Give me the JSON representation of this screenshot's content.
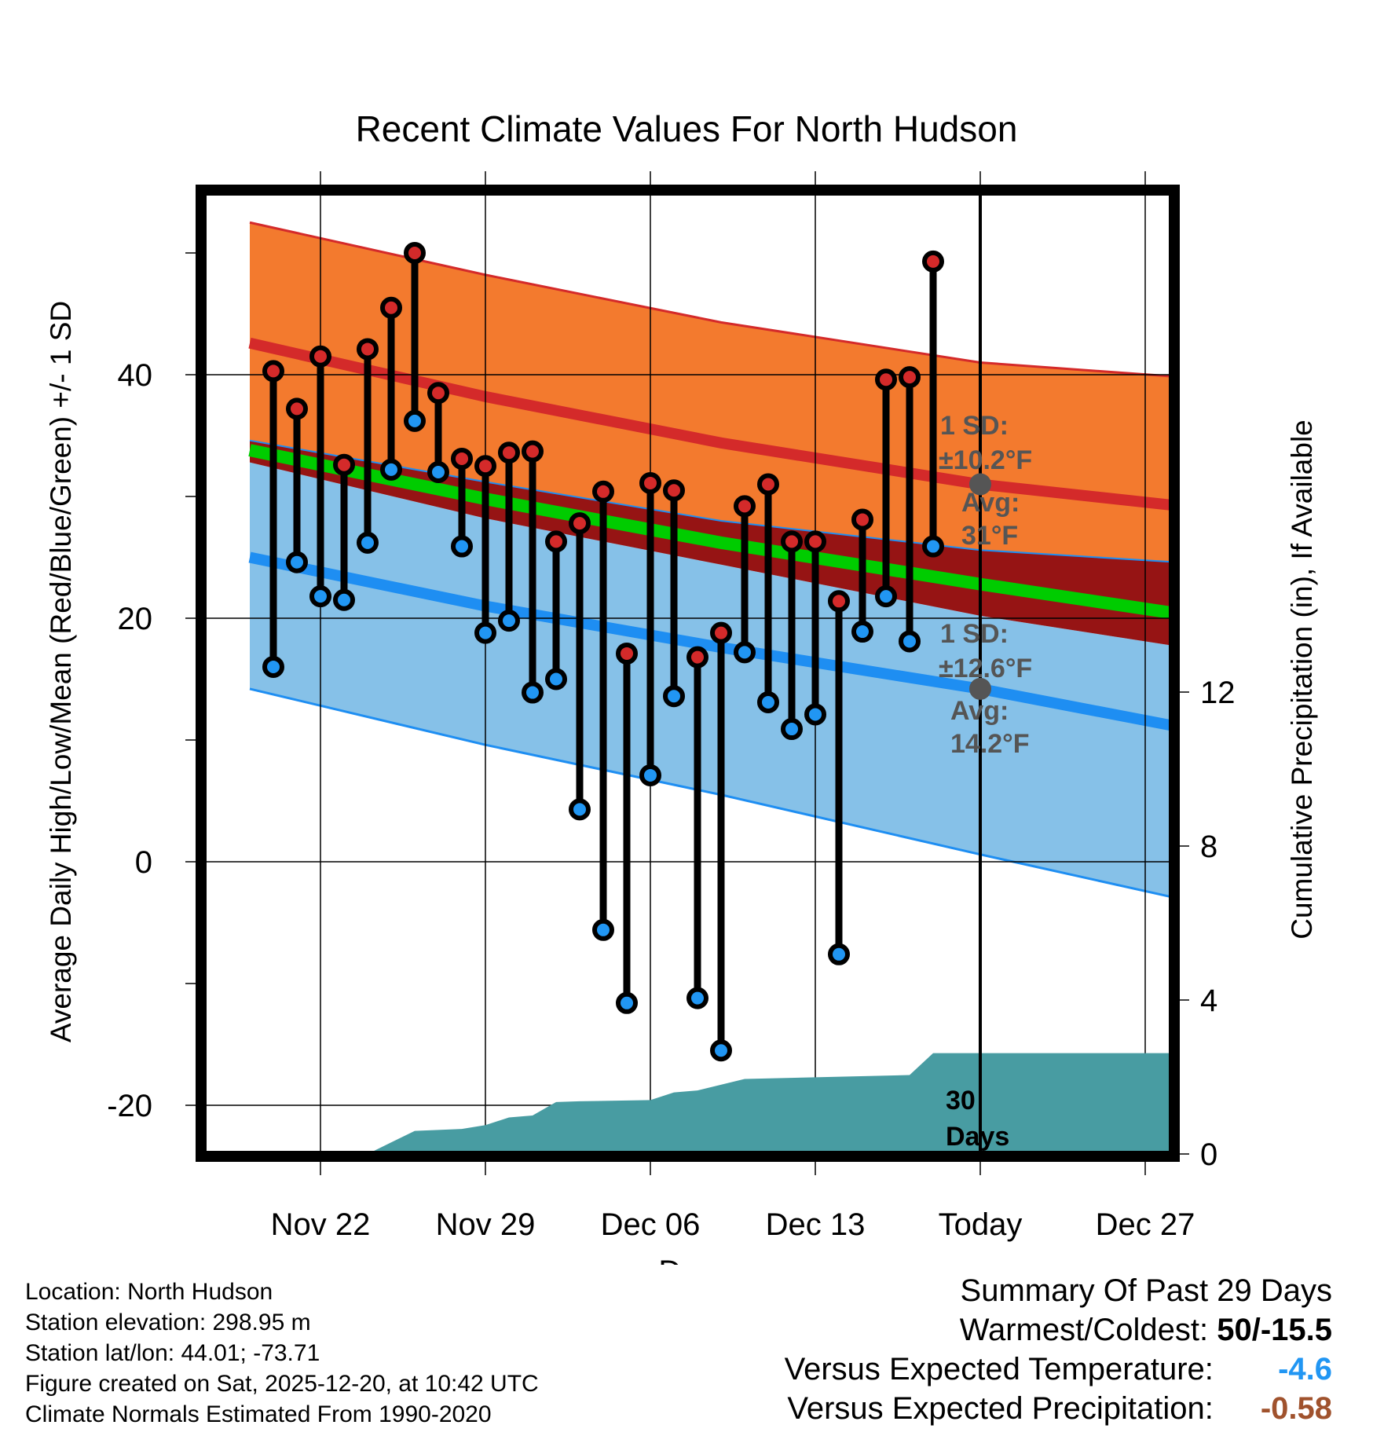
{
  "chart_data": {
    "type": "climate-range",
    "title": "Recent Climate Values For North Hudson",
    "xlabel": "Day",
    "ylabel_left": "Average Daily High/Low/Mean (Red/Blue/Green) +/- 1 SD",
    "ylabel_right": "Cumulative Precipitation (in), If Available",
    "y_left_range": [
      -23,
      55
    ],
    "y_right_range": [
      0,
      30
    ],
    "x_range": [
      -1,
      13.5
    ],
    "x_ticks": [
      {
        "day": 2,
        "label": "Nov 22"
      },
      {
        "day": 9,
        "label": "Nov 29"
      },
      {
        "day": 16,
        "label": "Dec 06"
      },
      {
        "day": 23,
        "label": "Dec 13"
      },
      {
        "day": 30,
        "label": "Today"
      },
      {
        "day": 37,
        "label": "Dec 27"
      }
    ],
    "y_left_ticks": [
      -20,
      0,
      20,
      40
    ],
    "y_right_ticks": [
      0,
      4,
      8,
      12
    ],
    "normals": {
      "days": [
        -1,
        9,
        19,
        30,
        40
      ],
      "high_plus_sd": [
        52.5,
        48.2,
        44.3,
        41.0,
        39.6
      ],
      "high_avg": [
        42.6,
        38.2,
        34.4,
        31.0,
        28.9
      ],
      "high_minus_sd": [
        34.6,
        31.2,
        28.0,
        25.6,
        24.4
      ],
      "mean": [
        33.8,
        29.8,
        26.2,
        22.8,
        19.9
      ],
      "low_plus_sd": [
        32.8,
        28.2,
        24.4,
        20.2,
        17.2
      ],
      "low_avg": [
        25.0,
        21.0,
        17.6,
        14.2,
        10.5
      ],
      "low_minus_sd": [
        14.2,
        9.6,
        5.5,
        0.6,
        -3.7
      ]
    },
    "observations": {
      "days": [
        0,
        1,
        2,
        3,
        4,
        5,
        6,
        7,
        8,
        9,
        10,
        11,
        12,
        13,
        14,
        15,
        16,
        17,
        18,
        19,
        20,
        21,
        22,
        23,
        24,
        25,
        26,
        27,
        28
      ],
      "highs": [
        40.3,
        37.2,
        41.5,
        32.6,
        42.1,
        45.5,
        50.0,
        38.5,
        33.1,
        32.5,
        33.6,
        33.7,
        26.3,
        27.8,
        30.4,
        17.1,
        31.1,
        30.5,
        16.8,
        18.8,
        29.2,
        31.0,
        26.3,
        26.3,
        21.4,
        28.1,
        39.6,
        39.8,
        49.3
      ],
      "lows": [
        16.0,
        24.6,
        21.8,
        21.5,
        26.2,
        32.2,
        36.2,
        32.0,
        25.9,
        18.8,
        19.8,
        13.9,
        15.0,
        4.3,
        -5.6,
        -11.6,
        7.1,
        13.6,
        -11.2,
        -15.5,
        17.2,
        13.1,
        10.9,
        12.1,
        -7.6,
        18.9,
        21.8,
        18.1,
        25.9
      ]
    },
    "precipitation": {
      "days": [
        -1,
        4,
        5,
        6,
        8,
        9,
        10,
        11,
        12,
        13,
        16,
        17,
        18,
        20,
        27,
        28,
        29,
        40
      ],
      "cumulative": [
        0,
        0,
        0.3,
        0.6,
        0.65,
        0.75,
        0.95,
        1.0,
        1.35,
        1.37,
        1.4,
        1.6,
        1.65,
        1.95,
        2.05,
        2.62,
        2.62,
        2.62
      ]
    },
    "annotations": {
      "high_sd_line1": "1 SD:",
      "high_sd_line2": "±10.2°F",
      "high_avg_label": "Avg:",
      "high_avg_value": "31°F",
      "high_avg_today": 31.0,
      "low_sd_line1": "1 SD:",
      "low_sd_line2": "±12.6°F",
      "low_avg_label": "Avg:",
      "low_avg_value": "14.2°F",
      "low_avg_today": 14.2,
      "days_line1": "30",
      "days_line2": "Days"
    },
    "colors": {
      "high_band": "#f37a2e",
      "high_line": "#d42a2a",
      "mean_band": "#961414",
      "mean_line": "#00cc00",
      "low_band": "#86c1e8",
      "low_line": "#1e8ef2",
      "precip": "#489ca2",
      "high_dot": "#d42a2a",
      "low_dot": "#2196f3",
      "avg_dot": "#555555",
      "annotation_text": "#555555"
    }
  },
  "footer": {
    "location": "Location: North Hudson",
    "elevation": "Station elevation: 298.95 m",
    "latlon": "Station lat/lon: 44.01; -73.71",
    "created": "Figure created on Sat, 2025-12-20, at 10:42 UTC",
    "normals": "Climate Normals Estimated From 1990-2020"
  },
  "summary": {
    "title": "Summary Of Past 29 Days",
    "warmest_label": "Warmest/Coldest:",
    "warmest_value": "50/-15.5",
    "temp_label": "Versus Expected Temperature:",
    "temp_value": "-4.6",
    "temp_color": "#2196f3",
    "precip_label": "Versus Expected Precipitation:",
    "precip_value": "-0.58",
    "precip_color": "#a0522d"
  }
}
